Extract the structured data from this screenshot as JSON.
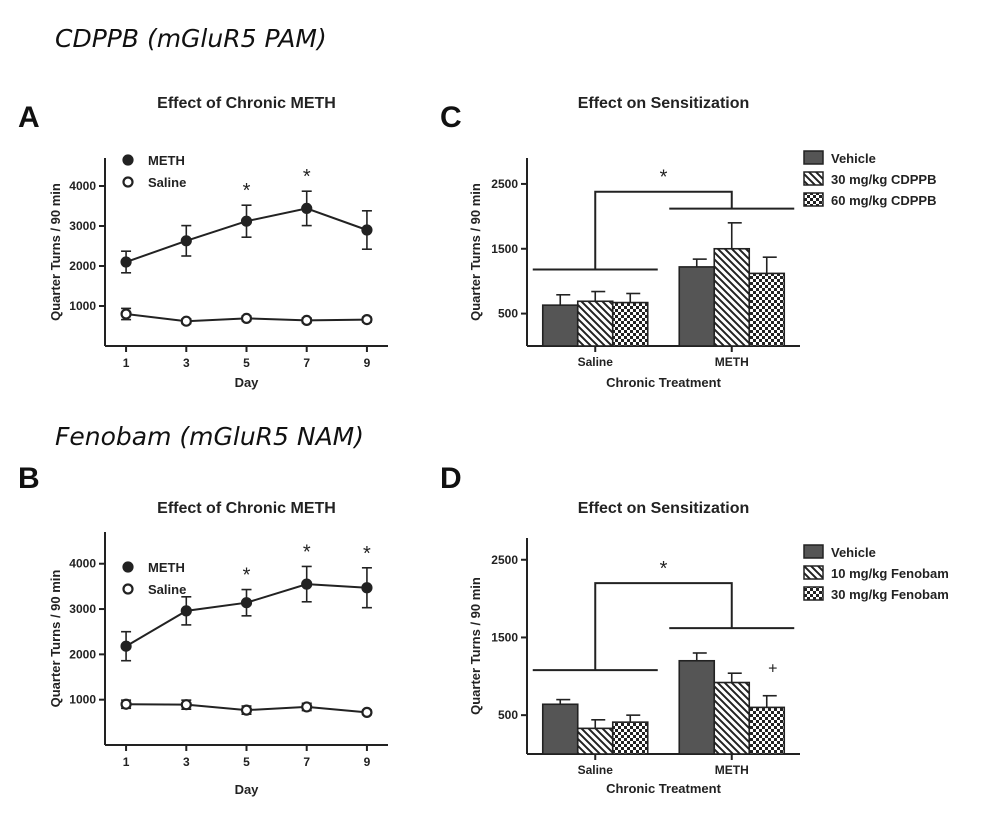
{
  "section_titles": [
    "CDPPB (mGluR5 PAM)",
    "Fenobam (mGluR5 NAM)"
  ],
  "colors": {
    "vehicle": "#555555",
    "ink": "#222222"
  },
  "chart_data": [
    {
      "panel": "A",
      "type": "line",
      "title": "Effect of Chronic METH",
      "xlabel": "Day",
      "ylabel": "Quarter Turns / 90 min",
      "x": [
        1,
        3,
        5,
        7,
        9
      ],
      "xlim": [
        0.3,
        9.7
      ],
      "ylim": [
        0,
        4700
      ],
      "yticks": [
        1000,
        2000,
        3000,
        4000
      ],
      "legend_position": "top-left",
      "series": [
        {
          "name": "METH",
          "marker": "filled",
          "values": [
            2100,
            2630,
            3120,
            3440,
            2900
          ],
          "errors": [
            270,
            380,
            400,
            430,
            480
          ]
        },
        {
          "name": "Saline",
          "marker": "open",
          "values": [
            800,
            620,
            690,
            640,
            660
          ],
          "errors": [
            140,
            60,
            60,
            60,
            60
          ]
        }
      ],
      "significance": [
        {
          "x": 5,
          "label": "*"
        },
        {
          "x": 7,
          "label": "*"
        }
      ]
    },
    {
      "panel": "C",
      "type": "bar",
      "title": "Effect on Sensitization",
      "xlabel": "Chronic Treatment",
      "ylabel": "Quarter Turns / 90 min",
      "categories": [
        "Saline",
        "METH"
      ],
      "ylim": [
        0,
        2900
      ],
      "yticks": [
        500,
        1500,
        2500
      ],
      "legend_position": "top-right",
      "series": [
        {
          "name": "Vehicle",
          "pattern": "solid",
          "values": [
            630,
            1220
          ],
          "errors": [
            160,
            120
          ]
        },
        {
          "name": "30 mg/kg CDPPB",
          "pattern": "hatch",
          "values": [
            690,
            1500
          ],
          "errors": [
            150,
            400
          ]
        },
        {
          "name": "60 mg/kg CDPPB",
          "pattern": "check",
          "values": [
            670,
            1120
          ],
          "errors": [
            140,
            250
          ]
        }
      ],
      "group_brackets": [
        {
          "y": 1180
        },
        {
          "y": 2120
        }
      ],
      "comparison_bracket": {
        "y": 2380,
        "label": "*"
      }
    },
    {
      "panel": "B",
      "type": "line",
      "title": "Effect of Chronic METH",
      "xlabel": "Day",
      "ylabel": "Quarter Turns / 90 min",
      "x": [
        1,
        3,
        5,
        7,
        9
      ],
      "xlim": [
        0.3,
        9.7
      ],
      "ylim": [
        0,
        4700
      ],
      "yticks": [
        1000,
        2000,
        3000,
        4000
      ],
      "legend_position": "top-left",
      "series": [
        {
          "name": "METH",
          "marker": "filled",
          "values": [
            2180,
            2960,
            3140,
            3550,
            3470
          ],
          "errors": [
            320,
            310,
            290,
            390,
            440
          ]
        },
        {
          "name": "Saline",
          "marker": "open",
          "values": [
            900,
            890,
            770,
            840,
            720
          ],
          "errors": [
            90,
            100,
            90,
            80,
            50
          ]
        }
      ],
      "significance": [
        {
          "x": 5,
          "label": "*"
        },
        {
          "x": 7,
          "label": "*"
        },
        {
          "x": 9,
          "label": "*"
        }
      ]
    },
    {
      "panel": "D",
      "type": "bar",
      "title": "Effect on Sensitization",
      "xlabel": "Chronic Treatment",
      "ylabel": "Quarter Turns / 90 min",
      "categories": [
        "Saline",
        "METH"
      ],
      "ylim": [
        0,
        2780
      ],
      "yticks": [
        500,
        1500,
        2500
      ],
      "legend_position": "top-right",
      "series": [
        {
          "name": "Vehicle",
          "pattern": "solid",
          "values": [
            640,
            1200
          ],
          "errors": [
            60,
            100
          ]
        },
        {
          "name": "10 mg/kg Fenobam",
          "pattern": "hatch",
          "values": [
            330,
            920
          ],
          "errors": [
            110,
            120
          ]
        },
        {
          "name": "30 mg/kg Fenobam",
          "pattern": "check",
          "values": [
            410,
            600
          ],
          "errors": [
            90,
            150
          ]
        }
      ],
      "group_brackets": [
        {
          "y": 1080
        },
        {
          "y": 1620
        }
      ],
      "comparison_bracket": {
        "y": 2200,
        "label": "*"
      },
      "extra_marks": [
        {
          "group": 1,
          "bar": 2,
          "label": "+"
        }
      ]
    }
  ]
}
